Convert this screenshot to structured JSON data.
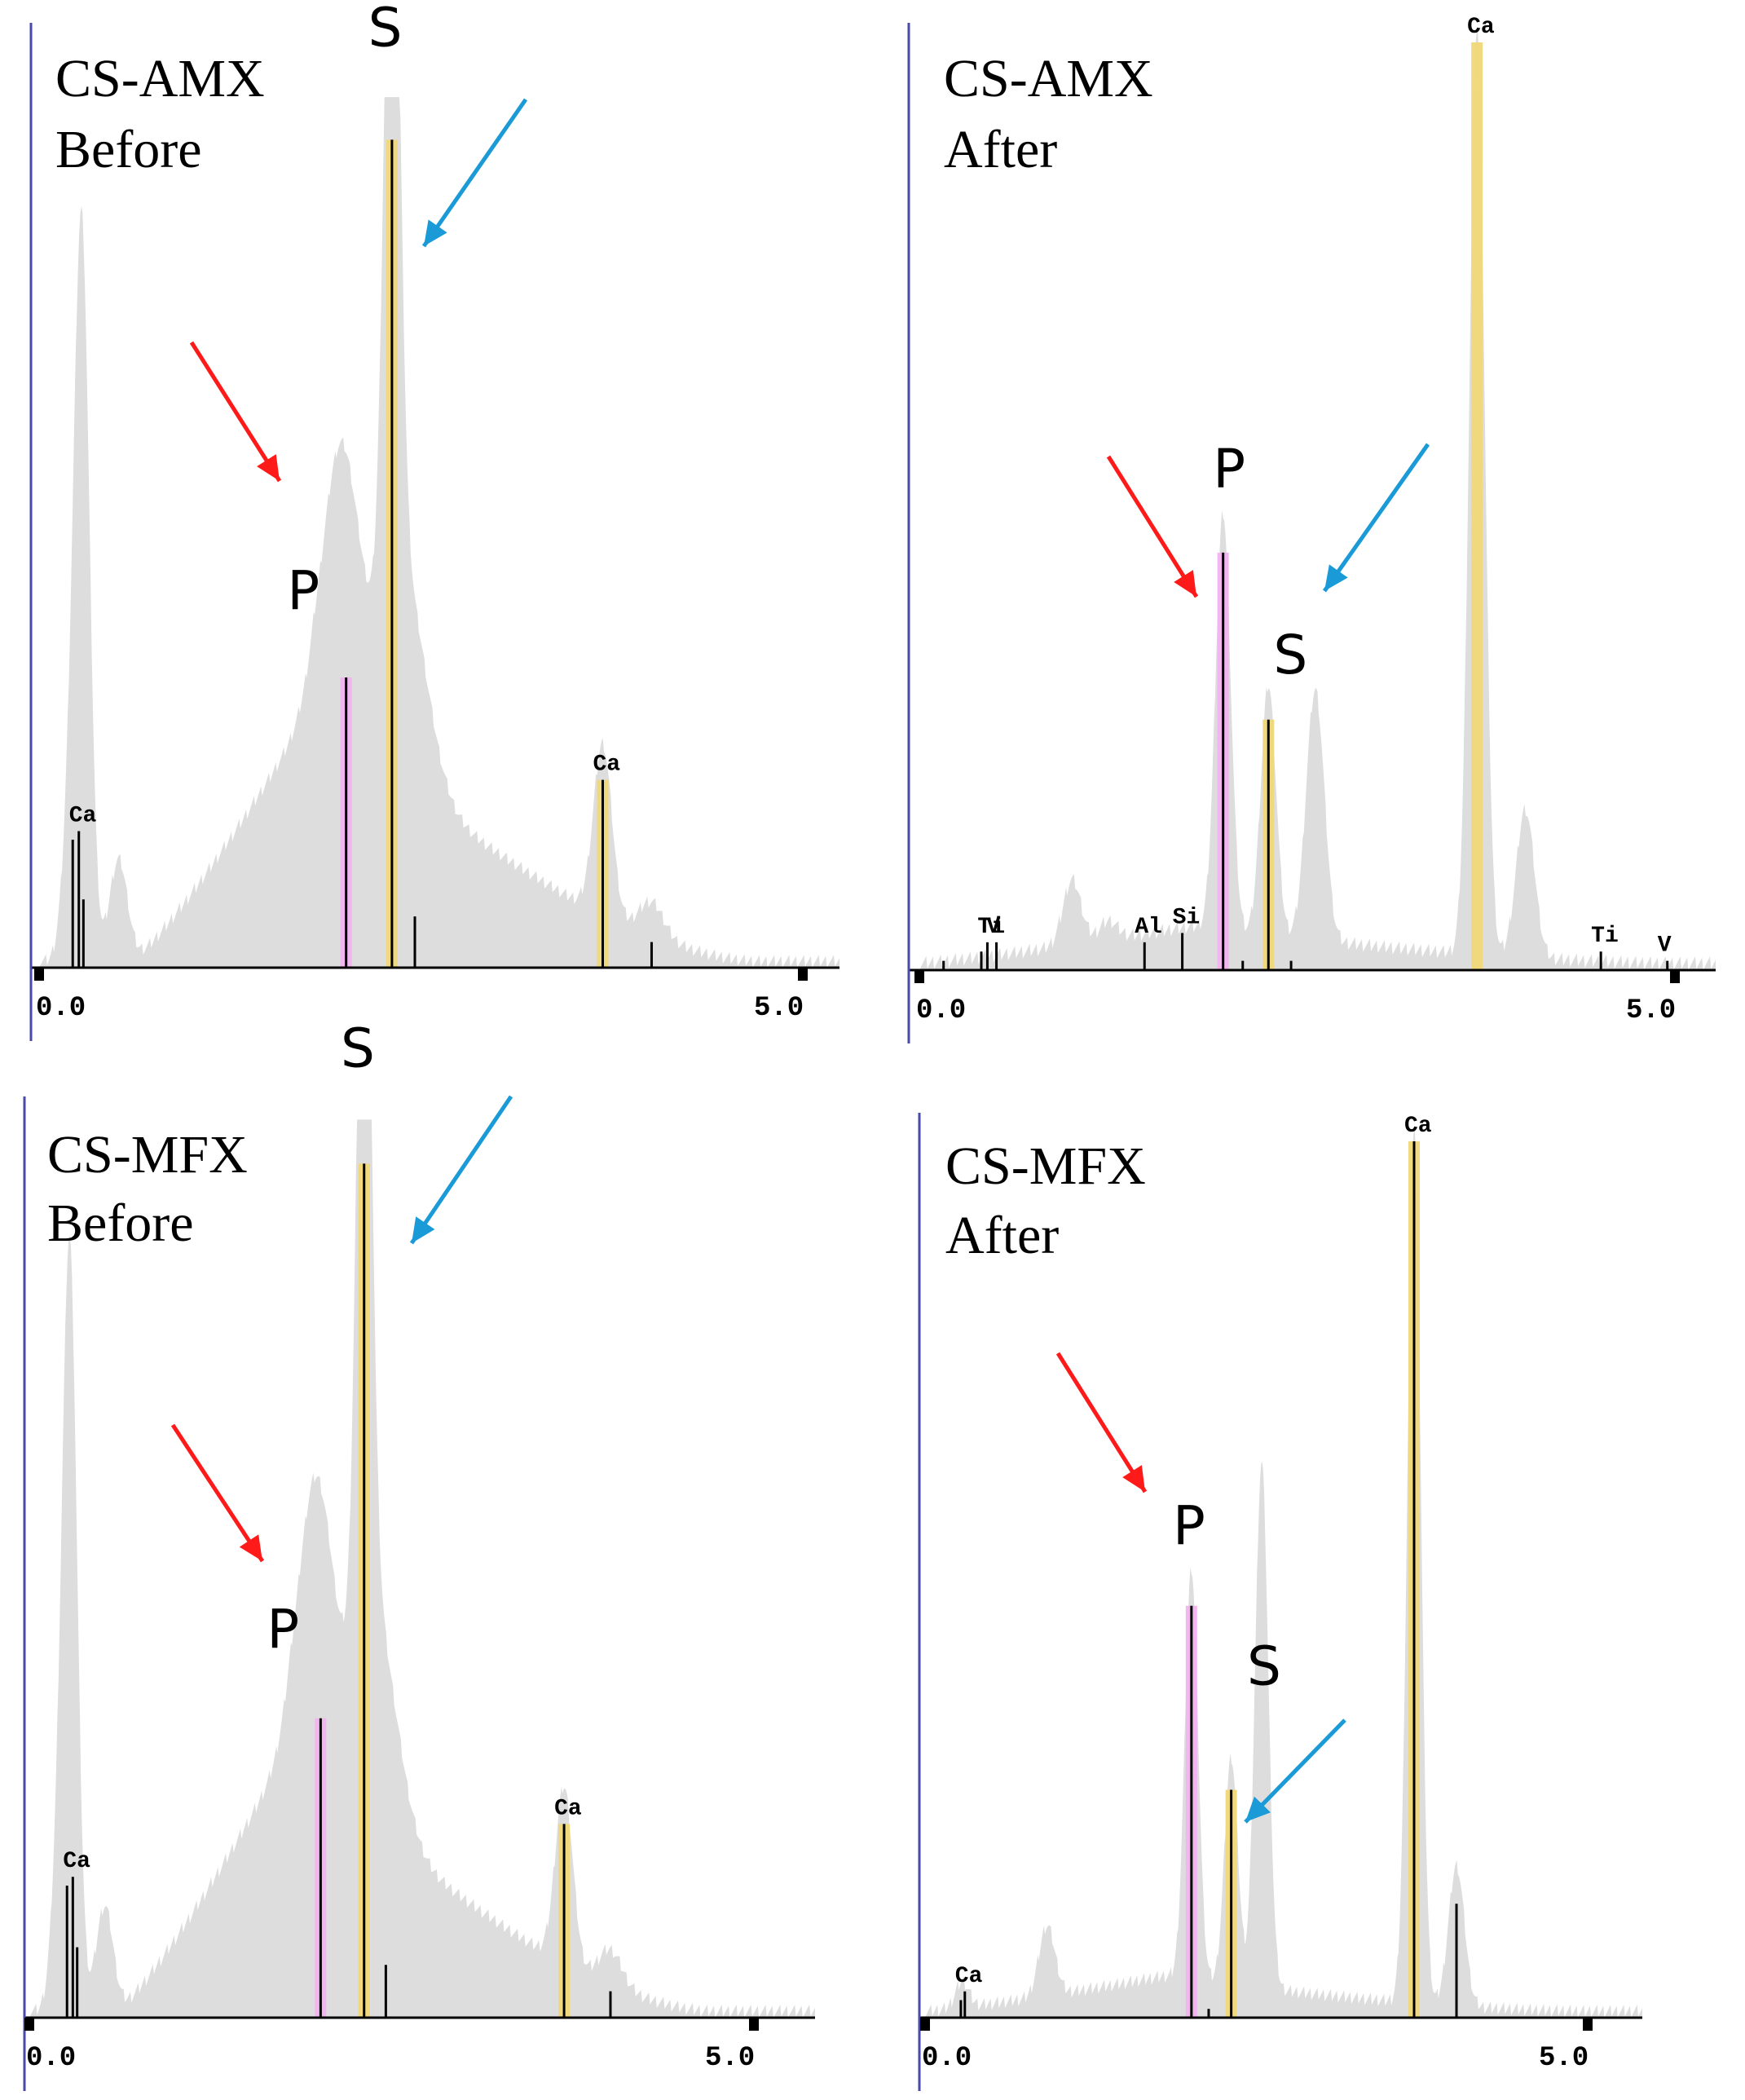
{
  "figure": {
    "description_colors": {
      "background": "#ffffff",
      "spectrum_fill": "#dddddd",
      "phosphorus_band": "#f2b3ef",
      "sulfur_band": "#f0d778",
      "line_color": "#000000",
      "red_arrow": "#ff1a1a",
      "blue_arrow": "#1a9ad6",
      "axis_left": "#4a4aa8"
    }
  },
  "chart_data": [
    {
      "type": "area",
      "title": "CS-AMX",
      "subtitle": "Before",
      "x_tick_labels": [
        "0.0",
        "5.0"
      ],
      "xlim": [
        0.0,
        5.0
      ],
      "ylim": [
        0,
        100
      ],
      "series": [
        {
          "name": "EDX spectrum",
          "peaks": [
            {
              "x": 0.28,
              "h": 84,
              "w": 0.05
            },
            {
              "x": 0.2,
              "h": 14,
              "w": 0.05
            },
            {
              "x": 0.52,
              "h": 12,
              "w": 0.06
            },
            {
              "x": 1.98,
              "h": 33,
              "w": 0.12
            },
            {
              "x": 2.31,
              "h": 97,
              "w": 0.05
            },
            {
              "x": 2.38,
              "h": 25,
              "w": 0.15
            },
            {
              "x": 3.69,
              "h": 20,
              "w": 0.06
            },
            {
              "x": 4.01,
              "h": 4,
              "w": 0.08
            }
          ],
          "background": {
            "peak_x": 1.8,
            "peak_h": 30,
            "rise_from": 0.6,
            "fall_to": 4.7
          }
        }
      ],
      "element_lines": [
        {
          "label": "Ca",
          "x": 0.26,
          "h": 16
        },
        {
          "x": 0.22,
          "h": 15
        },
        {
          "x": 0.29,
          "h": 8
        },
        {
          "label": "P",
          "x": 2.01,
          "h": 34,
          "band": "P"
        },
        {
          "label": "S",
          "x": 2.31,
          "h": 97,
          "band": "S"
        },
        {
          "x": 2.46,
          "h": 6
        },
        {
          "label": "Ca",
          "x": 3.69,
          "h": 22,
          "band": "S"
        },
        {
          "x": 4.01,
          "h": 3
        }
      ],
      "peak_letters": [
        {
          "text": "P",
          "x": 1.72,
          "y": 42
        },
        {
          "text": "S",
          "x": 2.25,
          "y": 108
        }
      ],
      "arrows": [
        {
          "color": "red"
        },
        {
          "color": "blue"
        }
      ]
    },
    {
      "type": "area",
      "title": "CS-AMX",
      "subtitle": "After",
      "x_tick_labels": [
        "0.0",
        "5.0"
      ],
      "xlim": [
        0.0,
        5.0
      ],
      "ylim": [
        0,
        100
      ],
      "series": [
        {
          "name": "EDX spectrum",
          "peaks": [
            {
              "x": 1.01,
              "h": 7,
              "w": 0.06
            },
            {
              "x": 1.25,
              "h": 2,
              "w": 0.06
            },
            {
              "x": 2.01,
              "h": 45,
              "w": 0.05
            },
            {
              "x": 2.31,
              "h": 27,
              "w": 0.05
            },
            {
              "x": 2.62,
              "h": 27,
              "w": 0.06
            },
            {
              "x": 3.69,
              "h": 100,
              "w": 0.05
            },
            {
              "x": 4.01,
              "h": 16,
              "w": 0.06
            }
          ],
          "background": {
            "peak_x": 1.8,
            "peak_h": 4,
            "rise_from": 0.0,
            "fall_to": 5.0
          }
        }
      ],
      "element_lines": [
        {
          "label": "Ti",
          "x": 0.45,
          "h": 3
        },
        {
          "label": "V",
          "x": 0.51,
          "h": 3
        },
        {
          "x": 0.41,
          "h": 2
        },
        {
          "x": 0.16,
          "h": 1
        },
        {
          "label": "Al",
          "x": 1.49,
          "h": 3
        },
        {
          "label": "Si",
          "x": 1.74,
          "h": 4
        },
        {
          "label": "P",
          "x": 2.01,
          "h": 45,
          "band": "P"
        },
        {
          "label": "S",
          "x": 2.31,
          "h": 27,
          "band": "S"
        },
        {
          "x": 2.14,
          "h": 1
        },
        {
          "x": 2.46,
          "h": 1
        },
        {
          "label": "Ca",
          "x": 3.69,
          "h": 100,
          "band": "S",
          "hidden_line": true
        },
        {
          "label": "Ti",
          "x": 4.51,
          "h": 2
        },
        {
          "label": "V",
          "x": 4.95,
          "h": 1
        }
      ],
      "peak_letters": [
        {
          "text": "P",
          "x": 2.04,
          "y": 52
        },
        {
          "text": "S",
          "x": 2.44,
          "y": 32
        }
      ],
      "arrows": [
        {
          "color": "red"
        },
        {
          "color": "blue"
        }
      ]
    },
    {
      "type": "area",
      "title": "CS-MFX",
      "subtitle": "Before",
      "x_tick_labels": [
        "0.0",
        "5.0"
      ],
      "xlim": [
        0.0,
        5.0
      ],
      "ylim": [
        0,
        100
      ],
      "series": [
        {
          "name": "EDX spectrum",
          "peaks": [
            {
              "x": 0.28,
              "h": 84,
              "w": 0.05
            },
            {
              "x": 0.2,
              "h": 14,
              "w": 0.05
            },
            {
              "x": 0.52,
              "h": 12,
              "w": 0.06
            },
            {
              "x": 1.98,
              "h": 33,
              "w": 0.12
            },
            {
              "x": 2.31,
              "h": 97,
              "w": 0.05
            },
            {
              "x": 2.38,
              "h": 25,
              "w": 0.15
            },
            {
              "x": 3.69,
              "h": 20,
              "w": 0.06
            },
            {
              "x": 4.01,
              "h": 4,
              "w": 0.08
            }
          ],
          "background": {
            "peak_x": 1.8,
            "peak_h": 30,
            "rise_from": 0.6,
            "fall_to": 4.7
          }
        }
      ],
      "element_lines": [
        {
          "label": "Ca",
          "x": 0.3,
          "h": 16
        },
        {
          "x": 0.26,
          "h": 15
        },
        {
          "x": 0.33,
          "h": 8
        },
        {
          "label": "P",
          "x": 2.01,
          "h": 34,
          "band": "P"
        },
        {
          "label": "S",
          "x": 2.31,
          "h": 97,
          "band": "S"
        },
        {
          "x": 2.46,
          "h": 6
        },
        {
          "label": "Ca",
          "x": 3.69,
          "h": 22,
          "band": "S"
        },
        {
          "x": 4.01,
          "h": 3
        }
      ],
      "peak_letters": [
        {
          "text": "P",
          "x": 1.74,
          "y": 42
        },
        {
          "text": "S",
          "x": 2.25,
          "y": 108
        }
      ],
      "arrows": [
        {
          "color": "red"
        },
        {
          "color": "blue"
        }
      ]
    },
    {
      "type": "area",
      "title": "CS-MFX",
      "subtitle": "After",
      "x_tick_labels": [
        "0.0",
        "5.0"
      ],
      "xlim": [
        0.0,
        5.0
      ],
      "ylim": [
        0,
        100
      ],
      "series": [
        {
          "name": "EDX spectrum",
          "peaks": [
            {
              "x": 0.28,
              "h": 3,
              "w": 0.05
            },
            {
              "x": 0.92,
              "h": 8,
              "w": 0.06
            },
            {
              "x": 2.01,
              "h": 47,
              "w": 0.05
            },
            {
              "x": 2.31,
              "h": 26,
              "w": 0.05
            },
            {
              "x": 2.54,
              "h": 60,
              "w": 0.05
            },
            {
              "x": 3.69,
              "h": 100,
              "w": 0.05
            },
            {
              "x": 4.01,
              "h": 16,
              "w": 0.06
            }
          ],
          "background": {
            "peak_x": 1.8,
            "peak_h": 4,
            "rise_from": 0.0,
            "fall_to": 5.0
          }
        }
      ],
      "element_lines": [
        {
          "label": "Ca",
          "x": 0.3,
          "h": 3
        },
        {
          "x": 0.27,
          "h": 2
        },
        {
          "label": "P",
          "x": 2.01,
          "h": 47,
          "band": "P"
        },
        {
          "label": "S",
          "x": 2.31,
          "h": 26,
          "band": "S"
        },
        {
          "x": 2.14,
          "h": 1
        },
        {
          "label": "Ca",
          "x": 3.69,
          "h": 100,
          "band": "S"
        },
        {
          "x": 4.01,
          "h": 13
        }
      ],
      "peak_letters": [
        {
          "text": "P",
          "x": 1.98,
          "y": 54
        },
        {
          "text": "S",
          "x": 2.54,
          "y": 38
        }
      ],
      "arrows": [
        {
          "color": "red"
        },
        {
          "color": "blue"
        }
      ]
    }
  ]
}
